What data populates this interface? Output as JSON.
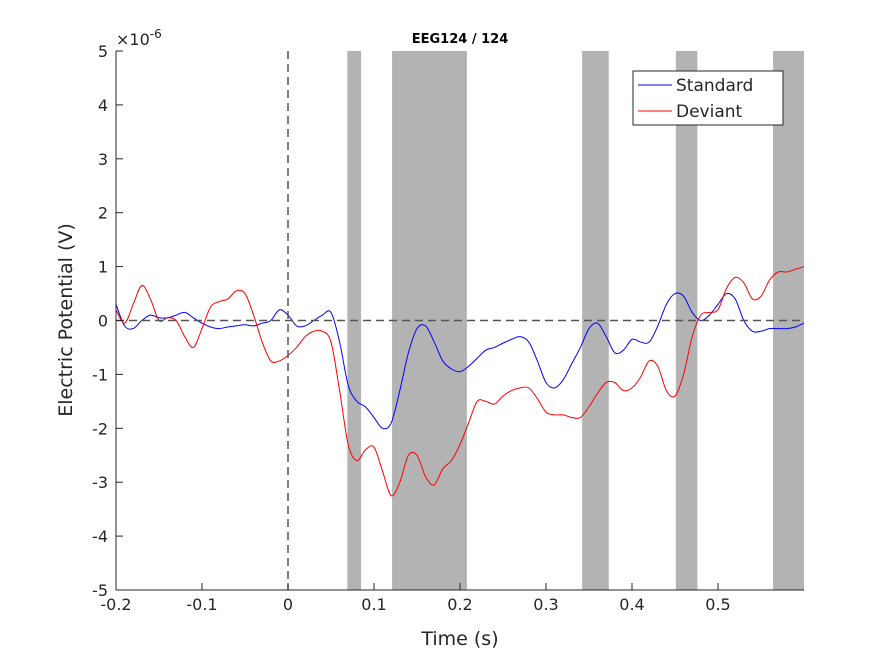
{
  "chart_data": {
    "type": "line",
    "title": "EEG124 / 124",
    "xlabel": "Time (s)",
    "ylabel": "Electric Potential (V)",
    "y_multiplier": "×10",
    "y_exponent": "-6",
    "xlim": [
      -0.2,
      0.6
    ],
    "ylim": [
      -5,
      5
    ],
    "xticks": [
      -0.2,
      -0.1,
      0,
      0.1,
      0.2,
      0.3,
      0.4,
      0.5
    ],
    "xtick_labels": [
      "-0.2",
      "-0.1",
      "0",
      "0.1",
      "0.2",
      "0.3",
      "0.4",
      "0.5"
    ],
    "yticks": [
      -5,
      -4,
      -3,
      -2,
      -1,
      0,
      1,
      2,
      3,
      4,
      5
    ],
    "ytick_labels": [
      "-5",
      "-4",
      "-3",
      "-2",
      "-1",
      "0",
      "1",
      "2",
      "3",
      "4",
      "5"
    ],
    "grid": false,
    "legend_position": "top-right",
    "reference_lines": {
      "zero_time": 0,
      "zero_potential": 0
    },
    "shaded_intervals": [
      [
        0.069,
        0.085
      ],
      [
        0.121,
        0.208
      ],
      [
        0.342,
        0.373
      ],
      [
        0.451,
        0.476
      ],
      [
        0.564,
        0.6
      ]
    ],
    "shade_color": "#b3b3b3",
    "x": [
      -0.2,
      -0.19,
      -0.18,
      -0.17,
      -0.16,
      -0.15,
      -0.14,
      -0.13,
      -0.12,
      -0.11,
      -0.1,
      -0.09,
      -0.08,
      -0.07,
      -0.06,
      -0.05,
      -0.04,
      -0.03,
      -0.02,
      -0.01,
      0,
      0.01,
      0.02,
      0.03,
      0.04,
      0.05,
      0.06,
      0.07,
      0.08,
      0.09,
      0.1,
      0.11,
      0.12,
      0.13,
      0.14,
      0.15,
      0.16,
      0.17,
      0.18,
      0.19,
      0.2,
      0.21,
      0.22,
      0.23,
      0.24,
      0.25,
      0.26,
      0.27,
      0.28,
      0.29,
      0.3,
      0.31,
      0.32,
      0.33,
      0.34,
      0.35,
      0.36,
      0.37,
      0.38,
      0.39,
      0.4,
      0.41,
      0.42,
      0.43,
      0.44,
      0.45,
      0.46,
      0.47,
      0.48,
      0.49,
      0.5,
      0.51,
      0.52,
      0.53,
      0.54,
      0.55,
      0.56,
      0.57,
      0.58,
      0.59,
      0.6
    ],
    "series": [
      {
        "name": "Standard",
        "color": "#0000ff",
        "values": [
          0.3,
          -0.1,
          -0.15,
          0.0,
          0.1,
          0.05,
          0.05,
          0.1,
          0.15,
          0.05,
          -0.05,
          -0.12,
          -0.15,
          -0.12,
          -0.1,
          -0.08,
          -0.1,
          -0.05,
          0.0,
          0.2,
          0.1,
          -0.1,
          -0.1,
          0.0,
          0.1,
          0.15,
          -0.4,
          -1.2,
          -1.5,
          -1.6,
          -1.8,
          -2.0,
          -1.9,
          -1.3,
          -0.6,
          -0.15,
          -0.1,
          -0.4,
          -0.75,
          -0.9,
          -0.95,
          -0.85,
          -0.7,
          -0.55,
          -0.5,
          -0.42,
          -0.35,
          -0.3,
          -0.4,
          -0.75,
          -1.15,
          -1.25,
          -1.1,
          -0.8,
          -0.5,
          -0.15,
          -0.05,
          -0.3,
          -0.6,
          -0.55,
          -0.35,
          -0.4,
          -0.4,
          -0.1,
          0.3,
          0.5,
          0.45,
          0.15,
          0.0,
          0.1,
          0.3,
          0.5,
          0.4,
          0.0,
          -0.2,
          -0.2,
          -0.15,
          -0.15,
          -0.15,
          -0.12,
          -0.05
        ]
      },
      {
        "name": "Deviant",
        "color": "#ff0000",
        "values": [
          0.2,
          -0.05,
          0.3,
          0.65,
          0.4,
          0.0,
          0.05,
          0.0,
          -0.3,
          -0.5,
          -0.15,
          0.25,
          0.35,
          0.4,
          0.55,
          0.5,
          0.1,
          -0.4,
          -0.75,
          -0.75,
          -0.65,
          -0.5,
          -0.3,
          -0.2,
          -0.2,
          -0.4,
          -1.3,
          -2.3,
          -2.6,
          -2.4,
          -2.35,
          -2.8,
          -3.25,
          -3.0,
          -2.5,
          -2.5,
          -2.9,
          -3.05,
          -2.75,
          -2.6,
          -2.3,
          -1.9,
          -1.5,
          -1.5,
          -1.55,
          -1.4,
          -1.3,
          -1.25,
          -1.25,
          -1.45,
          -1.7,
          -1.75,
          -1.75,
          -1.8,
          -1.8,
          -1.6,
          -1.35,
          -1.15,
          -1.15,
          -1.3,
          -1.25,
          -1.05,
          -0.75,
          -0.85,
          -1.3,
          -1.4,
          -1.0,
          -0.3,
          0.1,
          0.15,
          0.2,
          0.6,
          0.8,
          0.7,
          0.4,
          0.45,
          0.75,
          0.9,
          0.9,
          0.95,
          1.0
        ]
      }
    ]
  }
}
